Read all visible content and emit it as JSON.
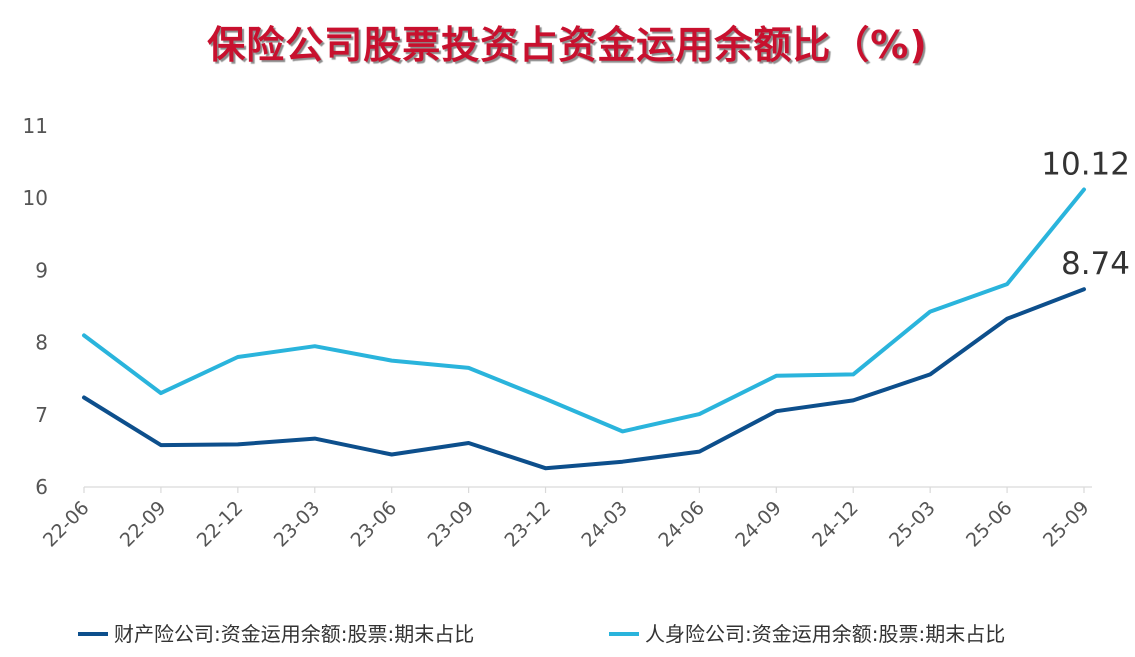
{
  "chart_data": {
    "type": "line",
    "title": "保险公司股票投资占资金运用余额比（%)",
    "xlabel": "",
    "ylabel": "",
    "categories": [
      "22-06",
      "22-09",
      "22-12",
      "23-03",
      "23-06",
      "23-09",
      "23-12",
      "24-03",
      "24-06",
      "24-09",
      "24-12",
      "25-03",
      "25-06",
      "25-09"
    ],
    "ylim": [
      6,
      11
    ],
    "yticks": [
      6,
      7,
      8,
      9,
      10,
      11
    ],
    "grid": false,
    "legend_position": "bottom",
    "series": [
      {
        "name": "财产险公司:资金运用余额:股票:期末占比",
        "color": "#0d4f8c",
        "values": [
          7.24,
          6.58,
          6.59,
          6.67,
          6.45,
          6.61,
          6.26,
          6.35,
          6.49,
          7.05,
          7.2,
          7.56,
          8.33,
          8.74
        ],
        "end_label": "8.74"
      },
      {
        "name": "人身险公司:资金运用余额:股票:期末占比",
        "color": "#2ab4dc",
        "values": [
          8.1,
          7.3,
          7.8,
          7.95,
          7.75,
          7.65,
          7.22,
          6.77,
          7.01,
          7.54,
          7.56,
          8.43,
          8.81,
          10.12
        ],
        "end_label": "10.12"
      }
    ]
  }
}
